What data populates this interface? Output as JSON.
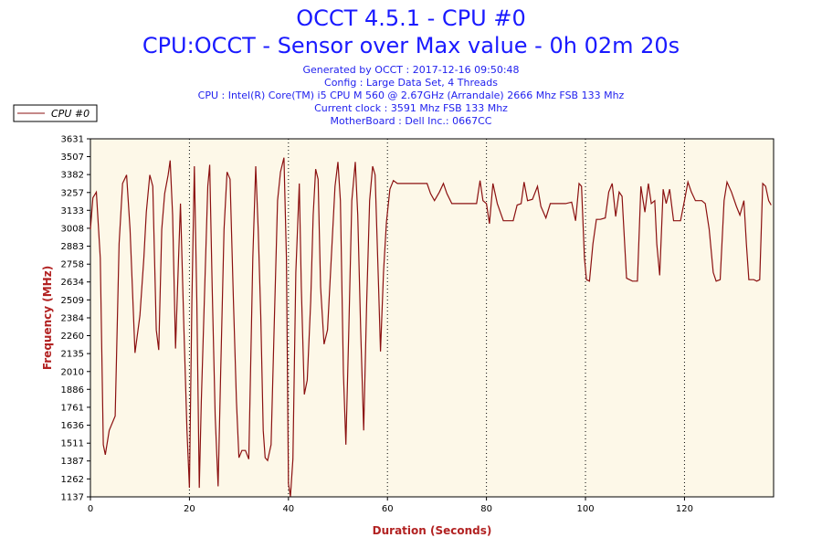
{
  "header": {
    "title": "OCCT 4.5.1 - CPU #0",
    "subtitle": "CPU:OCCT - Sensor over Max value - 0h 02m 20s",
    "info": [
      "Generated by OCCT : 2017-12-16 09:50:48",
      "Config : Large Data Set, 4 Threads",
      "CPU : Intel(R) Core(TM) i5 CPU M 560 @ 2.67GHz (Arrandale) 2666 Mhz FSB 133 Mhz",
      "Current clock : 3591 Mhz FSB 133 Mhz",
      "MotherBoard : Dell Inc.: 0667CC"
    ]
  },
  "colors": {
    "title": "#1a1aff",
    "info": "#2222ee",
    "series": "#8b1010",
    "axis_label": "#b22222",
    "plot_bg": "#fdf8e8"
  },
  "chart_data": {
    "type": "line",
    "title": "CPU:OCCT - Sensor over Max value - 0h 02m 20s",
    "xlabel": "Duration (Seconds)",
    "ylabel": "Frequency (MHz)",
    "xlim": [
      0,
      138
    ],
    "ylim": [
      1137,
      3631
    ],
    "x_ticks": [
      0,
      20,
      40,
      60,
      80,
      100,
      120
    ],
    "y_ticks": [
      1137,
      1262,
      1387,
      1511,
      1636,
      1761,
      1886,
      2010,
      2135,
      2260,
      2384,
      2509,
      2634,
      2758,
      2883,
      3008,
      3133,
      3257,
      3382,
      3507,
      3631
    ],
    "grid": "vertical dotted",
    "legend": "top-left",
    "series": [
      {
        "name": "CPU #0",
        "points": [
          [
            0,
            3000
          ],
          [
            0.5,
            3220
          ],
          [
            1.2,
            3260
          ],
          [
            2,
            2800
          ],
          [
            2.6,
            1500
          ],
          [
            3,
            1430
          ],
          [
            3.8,
            1600
          ],
          [
            5,
            1700
          ],
          [
            5.8,
            2900
          ],
          [
            6.5,
            3320
          ],
          [
            7.3,
            3380
          ],
          [
            8,
            3000
          ],
          [
            9,
            2140
          ],
          [
            10,
            2400
          ],
          [
            10.8,
            2800
          ],
          [
            11.3,
            3120
          ],
          [
            12,
            3380
          ],
          [
            12.6,
            3300
          ],
          [
            13.3,
            2300
          ],
          [
            13.8,
            2160
          ],
          [
            14.4,
            3000
          ],
          [
            15,
            3250
          ],
          [
            15.7,
            3380
          ],
          [
            16.1,
            3480
          ],
          [
            16.6,
            3100
          ],
          [
            17.2,
            2170
          ],
          [
            17.8,
            2800
          ],
          [
            18.2,
            3180
          ],
          [
            18.9,
            2300
          ],
          [
            19.5,
            1600
          ],
          [
            20,
            1200
          ],
          [
            20.5,
            2500
          ],
          [
            21,
            3440
          ],
          [
            21.5,
            2500
          ],
          [
            22,
            1200
          ],
          [
            22.4,
            1800
          ],
          [
            23,
            2500
          ],
          [
            23.7,
            3300
          ],
          [
            24.1,
            3450
          ],
          [
            24.6,
            2600
          ],
          [
            25.2,
            1700
          ],
          [
            25.8,
            1210
          ],
          [
            26.3,
            2000
          ],
          [
            27,
            3000
          ],
          [
            27.6,
            3400
          ],
          [
            28.2,
            3350
          ],
          [
            28.9,
            2500
          ],
          [
            29.5,
            1800
          ],
          [
            30,
            1410
          ],
          [
            30.6,
            1460
          ],
          [
            31.3,
            1460
          ],
          [
            32,
            1400
          ],
          [
            32.8,
            2800
          ],
          [
            33.4,
            3440
          ],
          [
            33.9,
            3000
          ],
          [
            34.4,
            2400
          ],
          [
            34.9,
            1600
          ],
          [
            35.3,
            1410
          ],
          [
            35.8,
            1390
          ],
          [
            36.5,
            1500
          ],
          [
            37.1,
            2300
          ],
          [
            37.8,
            3200
          ],
          [
            38.4,
            3400
          ],
          [
            39.1,
            3500
          ],
          [
            39.6,
            2800
          ],
          [
            40,
            1230
          ],
          [
            40.4,
            1140
          ],
          [
            40.9,
            1400
          ],
          [
            41.5,
            2700
          ],
          [
            42.2,
            3320
          ],
          [
            42.6,
            2600
          ],
          [
            43.2,
            1850
          ],
          [
            43.8,
            1950
          ],
          [
            44.5,
            2500
          ],
          [
            45,
            3100
          ],
          [
            45.5,
            3420
          ],
          [
            46,
            3350
          ],
          [
            46.5,
            2600
          ],
          [
            47.2,
            2200
          ],
          [
            47.9,
            2300
          ],
          [
            48.5,
            2700
          ],
          [
            49.4,
            3300
          ],
          [
            50,
            3470
          ],
          [
            50.5,
            3200
          ],
          [
            51.1,
            2000
          ],
          [
            51.6,
            1500
          ],
          [
            52.2,
            2300
          ],
          [
            52.8,
            3200
          ],
          [
            53.5,
            3470
          ],
          [
            54,
            3100
          ],
          [
            54.6,
            2300
          ],
          [
            55.2,
            1600
          ],
          [
            55.8,
            2500
          ],
          [
            56.4,
            3200
          ],
          [
            57,
            3440
          ],
          [
            57.5,
            3380
          ],
          [
            58.2,
            2600
          ],
          [
            58.6,
            2150
          ],
          [
            59.2,
            2700
          ],
          [
            59.8,
            3050
          ],
          [
            60.5,
            3280
          ],
          [
            61.2,
            3340
          ],
          [
            62,
            3320
          ],
          [
            63.5,
            3320
          ],
          [
            66,
            3320
          ],
          [
            68,
            3320
          ],
          [
            68.7,
            3250
          ],
          [
            69.5,
            3200
          ],
          [
            70.5,
            3260
          ],
          [
            71.3,
            3320
          ],
          [
            72,
            3250
          ],
          [
            73,
            3180
          ],
          [
            76,
            3180
          ],
          [
            78,
            3180
          ],
          [
            78.7,
            3340
          ],
          [
            79.3,
            3200
          ],
          [
            80,
            3180
          ],
          [
            80.6,
            3040
          ],
          [
            81.3,
            3320
          ],
          [
            82.2,
            3180
          ],
          [
            83.4,
            3060
          ],
          [
            84.4,
            3060
          ],
          [
            85.4,
            3060
          ],
          [
            86.2,
            3170
          ],
          [
            87,
            3180
          ],
          [
            87.6,
            3330
          ],
          [
            88.3,
            3200
          ],
          [
            89.3,
            3210
          ],
          [
            90.3,
            3300
          ],
          [
            91,
            3160
          ],
          [
            92,
            3080
          ],
          [
            92.9,
            3180
          ],
          [
            93.8,
            3180
          ],
          [
            95,
            3180
          ],
          [
            96,
            3180
          ],
          [
            97.2,
            3190
          ],
          [
            98,
            3060
          ],
          [
            98.7,
            3320
          ],
          [
            99.2,
            3300
          ],
          [
            99.8,
            2800
          ],
          [
            100.2,
            2650
          ],
          [
            100.8,
            2640
          ],
          [
            101.5,
            2900
          ],
          [
            102.2,
            3070
          ],
          [
            103,
            3070
          ],
          [
            104,
            3080
          ],
          [
            104.7,
            3260
          ],
          [
            105.4,
            3320
          ],
          [
            106.1,
            3090
          ],
          [
            106.8,
            3260
          ],
          [
            107.4,
            3230
          ],
          [
            108.3,
            2660
          ],
          [
            109.5,
            2640
          ],
          [
            110.5,
            2640
          ],
          [
            111.2,
            3300
          ],
          [
            112,
            3120
          ],
          [
            112.7,
            3320
          ],
          [
            113.3,
            3180
          ],
          [
            114,
            3200
          ],
          [
            114.4,
            2900
          ],
          [
            115,
            2680
          ],
          [
            115.7,
            3280
          ],
          [
            116.3,
            3180
          ],
          [
            117,
            3280
          ],
          [
            117.8,
            3060
          ],
          [
            118.5,
            3060
          ],
          [
            119.2,
            3060
          ],
          [
            120,
            3200
          ],
          [
            120.7,
            3330
          ],
          [
            121.4,
            3260
          ],
          [
            122.2,
            3200
          ],
          [
            123.5,
            3200
          ],
          [
            124.2,
            3180
          ],
          [
            125,
            3000
          ],
          [
            125.8,
            2700
          ],
          [
            126.4,
            2640
          ],
          [
            127.2,
            2650
          ],
          [
            128,
            3200
          ],
          [
            128.6,
            3330
          ],
          [
            129.5,
            3260
          ],
          [
            130.5,
            3160
          ],
          [
            131.2,
            3100
          ],
          [
            132,
            3200
          ],
          [
            132.5,
            2900
          ],
          [
            133,
            2650
          ],
          [
            134,
            2650
          ],
          [
            134.6,
            2640
          ],
          [
            135.2,
            2650
          ],
          [
            135.8,
            3320
          ],
          [
            136.4,
            3300
          ],
          [
            137,
            3200
          ],
          [
            137.5,
            3170
          ]
        ]
      }
    ]
  }
}
